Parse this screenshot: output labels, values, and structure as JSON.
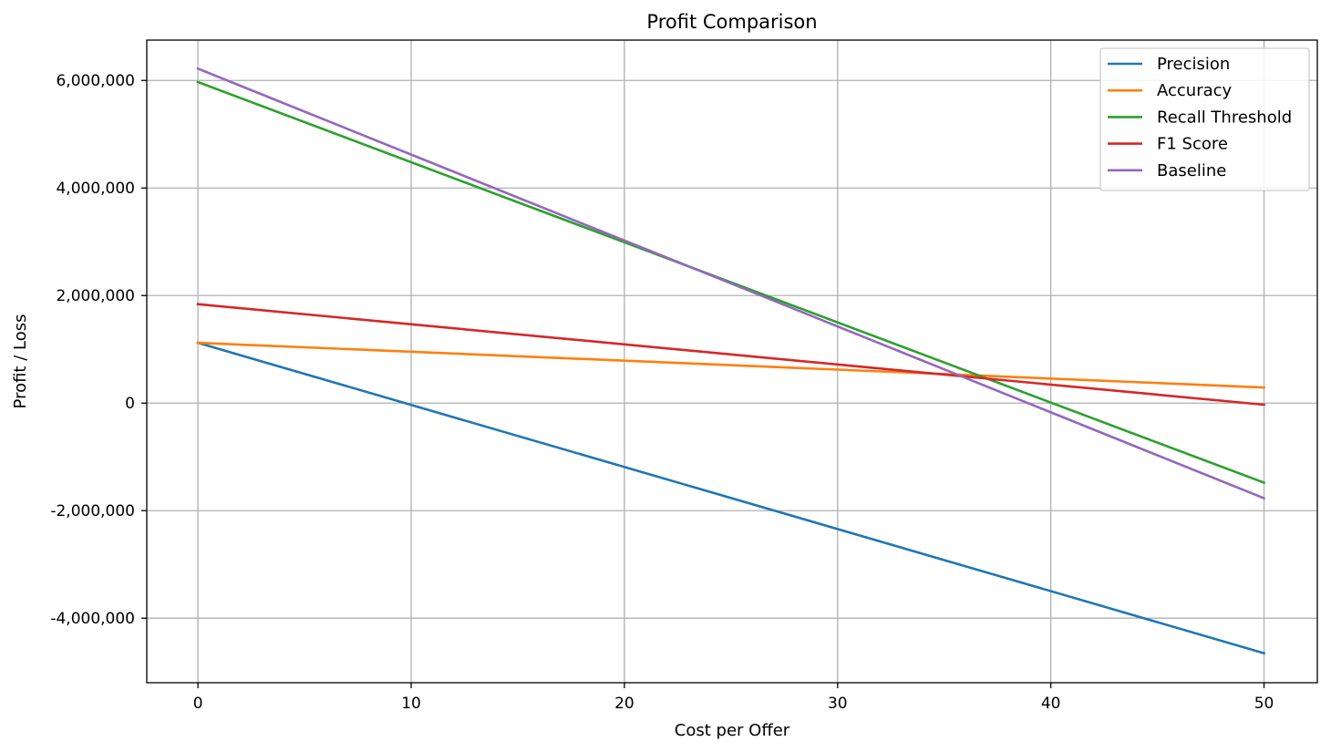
{
  "chart_data": {
    "type": "line",
    "title": "Profit Comparison",
    "xlabel": "Cost per Offer",
    "ylabel": "Profit / Loss",
    "xlim": [
      -2.4,
      52.5
    ],
    "ylim": [
      -5200000,
      6750000
    ],
    "xticks": [
      0,
      10,
      20,
      30,
      40,
      50
    ],
    "xtick_labels": [
      "0",
      "10",
      "20",
      "30",
      "40",
      "50"
    ],
    "yticks": [
      -4000000,
      -2000000,
      0,
      2000000,
      4000000,
      6000000
    ],
    "ytick_labels": [
      "-4,000,000",
      "-2,000,000",
      "0",
      "2,000,000",
      "4,000,000",
      "6,000,000"
    ],
    "grid": true,
    "legend_position": "top-right",
    "x": [
      0,
      50
    ],
    "series": [
      {
        "name": "Precision",
        "color": "#1f77b4",
        "values": [
          1120000,
          -4650000
        ]
      },
      {
        "name": "Accuracy",
        "color": "#ff7f0e",
        "values": [
          1120000,
          290000
        ]
      },
      {
        "name": "Recall Threshold",
        "color": "#2ca02c",
        "values": [
          5970000,
          -1480000
        ]
      },
      {
        "name": "F1 Score",
        "color": "#d62728",
        "values": [
          1840000,
          -30000
        ]
      },
      {
        "name": "Baseline",
        "color": "#9467bd",
        "values": [
          6220000,
          -1770000
        ]
      }
    ]
  }
}
